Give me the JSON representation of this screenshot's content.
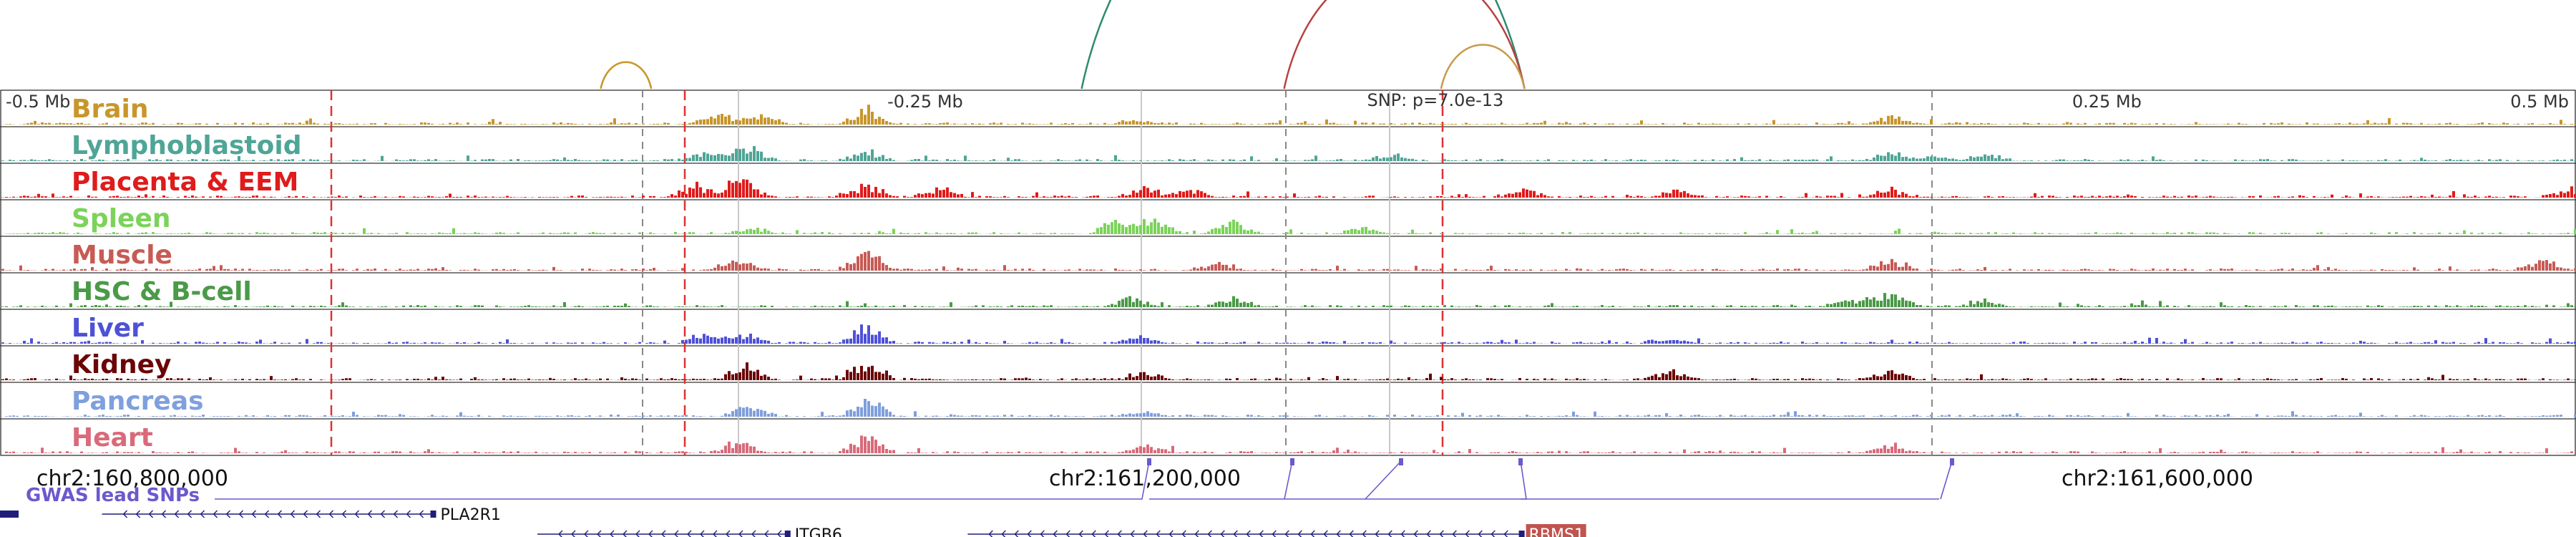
{
  "chart_data": {
    "type": "genome-browser",
    "scale_labels": [
      {
        "label": "-0.5 Mb",
        "offset_mb": -0.5
      },
      {
        "label": "-0.25 Mb",
        "offset_mb": -0.25
      },
      {
        "label": "0.25 Mb",
        "offset_mb": 0.25
      },
      {
        "label": "0.5 Mb",
        "offset_mb": 0.5
      }
    ],
    "snp": {
      "label": "SNP: p=7.0e-13",
      "position": 161346000,
      "pvalue": "7.0e-13"
    },
    "tracks": [
      {
        "name": "Brain",
        "color": "#c8962a"
      },
      {
        "name": "Lymphoblastoid",
        "color": "#4fa596"
      },
      {
        "name": "Placenta & EEM",
        "color": "#e01b1b"
      },
      {
        "name": "Spleen",
        "color": "#7bd35a"
      },
      {
        "name": "Muscle",
        "color": "#c85a55"
      },
      {
        "name": "HSC & B-cell",
        "color": "#4a9a47"
      },
      {
        "name": "Liver",
        "color": "#4d51d8"
      },
      {
        "name": "Kidney",
        "color": "#6b0606"
      },
      {
        "name": "Pancreas",
        "color": "#7f9fdd"
      },
      {
        "name": "Heart",
        "color": "#d96a7a"
      }
    ],
    "x_axis": {
      "labels": [
        {
          "text": "chr2:160,800,000",
          "position": 160800000
        },
        {
          "text": "chr2:161,200,000",
          "position": 161200000
        },
        {
          "text": "chr2:161,600,000",
          "position": 161600000
        }
      ]
    },
    "gwas_label": "GWAS lead SNPs",
    "genes": [
      {
        "name": "PLA2R1",
        "start": 160788000,
        "end": 160920000,
        "strand": "-",
        "row": 0
      },
      {
        "name": "ITGB6",
        "start": 160960000,
        "end": 161060000,
        "strand": "-",
        "row": 1
      },
      {
        "name": "RBMS1",
        "start": 161130000,
        "end": 161350000,
        "strand": "-",
        "row": 1
      }
    ],
    "highlight_gene": "RBMS1",
    "arcs": [
      {
        "from": 161175000,
        "to": 161350000,
        "color": "#2e8b6e"
      },
      {
        "from": 161255000,
        "to": 161350000,
        "color": "#b84242"
      },
      {
        "from": 161317000,
        "to": 161350000,
        "color": "#c89a4a"
      },
      {
        "from": 160985000,
        "to": 161005000,
        "color": "#c8962a"
      }
    ]
  }
}
